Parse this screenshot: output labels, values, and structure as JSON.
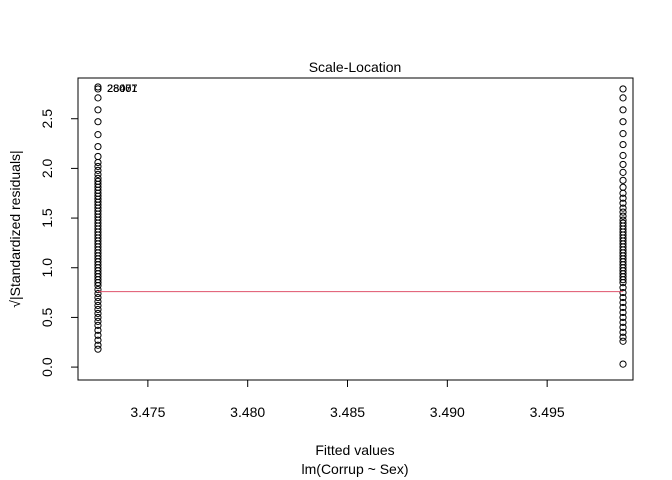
{
  "chart_data": {
    "type": "scatter",
    "title": "Scale-Location",
    "xlabel": "Fitted values",
    "subtitle": "lm(Corrup ~ Sex)",
    "ylabel": "√|Standardized residuals|",
    "xlim": [
      3.4715,
      3.4993
    ],
    "ylim": [
      -0.13,
      2.91
    ],
    "x_ticks": [
      3.475,
      3.48,
      3.485,
      3.49,
      3.495
    ],
    "x_tick_labels": [
      "3.475",
      "3.480",
      "3.485",
      "3.490",
      "3.495"
    ],
    "y_ticks": [
      0.0,
      0.5,
      1.0,
      1.5,
      2.0,
      2.5
    ],
    "y_tick_labels": [
      "0.0",
      "0.5",
      "1.0",
      "1.5",
      "2.0",
      "2.5"
    ],
    "grid": false,
    "groups": [
      {
        "x": 3.4725,
        "y": [
          2.82,
          2.8,
          2.71,
          2.59,
          2.47,
          2.34,
          2.22,
          2.12,
          2.06,
          2.02,
          1.98,
          1.94,
          1.9,
          1.87,
          1.84,
          1.81,
          1.78,
          1.75,
          1.72,
          1.69,
          1.66,
          1.63,
          1.6,
          1.57,
          1.54,
          1.51,
          1.48,
          1.45,
          1.42,
          1.39,
          1.36,
          1.33,
          1.3,
          1.27,
          1.24,
          1.21,
          1.18,
          1.15,
          1.12,
          1.09,
          1.06,
          1.03,
          1.0,
          0.97,
          0.94,
          0.91,
          0.88,
          0.85,
          0.82,
          0.78,
          0.74,
          0.7,
          0.66,
          0.62,
          0.58,
          0.54,
          0.5,
          0.46,
          0.42,
          0.37,
          0.32,
          0.27,
          0.22,
          0.18
        ]
      },
      {
        "x": 3.4988,
        "y": [
          2.8,
          2.71,
          2.59,
          2.47,
          2.35,
          2.24,
          2.13,
          2.04,
          1.96,
          1.88,
          1.81,
          1.75,
          1.7,
          1.65,
          1.6,
          1.56,
          1.52,
          1.48,
          1.45,
          1.42,
          1.39,
          1.36,
          1.33,
          1.3,
          1.27,
          1.24,
          1.21,
          1.18,
          1.15,
          1.12,
          1.09,
          1.06,
          1.03,
          1.0,
          0.97,
          0.94,
          0.91,
          0.88,
          0.85,
          0.8,
          0.75,
          0.7,
          0.65,
          0.6,
          0.55,
          0.5,
          0.45,
          0.4,
          0.35,
          0.3,
          0.26,
          0.03
        ]
      }
    ],
    "smooth_line": {
      "y": 0.76,
      "color": "#DF536B"
    },
    "point_labels": [
      {
        "text": "28007",
        "x": 3.4728,
        "y": 2.81
      },
      {
        "text": "28461",
        "x": 3.4728,
        "y": 2.81
      },
      {
        "text": "2807",
        "x": 3.4728,
        "y": 2.81
      }
    ]
  }
}
